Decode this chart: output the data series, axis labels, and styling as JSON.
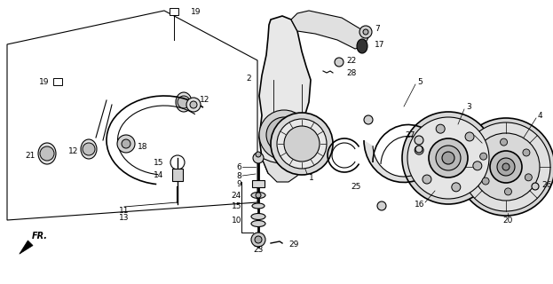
{
  "bg_color": "#ffffff",
  "line_color": "#000000",
  "fig_width": 6.23,
  "fig_height": 3.2,
  "dpi": 100
}
